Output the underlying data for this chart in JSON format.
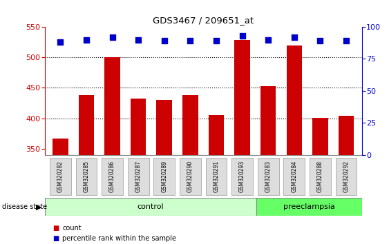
{
  "title": "GDS3467 / 209651_at",
  "samples": [
    "GSM320282",
    "GSM320285",
    "GSM320286",
    "GSM320287",
    "GSM320289",
    "GSM320290",
    "GSM320291",
    "GSM320293",
    "GSM320283",
    "GSM320284",
    "GSM320288",
    "GSM320292"
  ],
  "counts": [
    367,
    438,
    500,
    432,
    430,
    438,
    405,
    528,
    453,
    519,
    401,
    404
  ],
  "percentiles": [
    88,
    90,
    92,
    90,
    89,
    89,
    89,
    93,
    90,
    92,
    89,
    89
  ],
  "groups": [
    "control",
    "control",
    "control",
    "control",
    "control",
    "control",
    "control",
    "control",
    "preeclampsia",
    "preeclampsia",
    "preeclampsia",
    "preeclampsia"
  ],
  "ylim_left": [
    340,
    550
  ],
  "ylim_right": [
    0,
    100
  ],
  "yticks_left": [
    350,
    400,
    450,
    500,
    550
  ],
  "yticks_right": [
    0,
    25,
    50,
    75,
    100
  ],
  "bar_color": "#cc0000",
  "dot_color": "#0000cc",
  "control_color": "#ccffcc",
  "preeclampsia_color": "#66ff66",
  "label_bg_color": "#dddddd",
  "background_color": "#ffffff",
  "bar_width": 0.6,
  "dot_size": 40,
  "n_control": 8,
  "n_pre": 4
}
